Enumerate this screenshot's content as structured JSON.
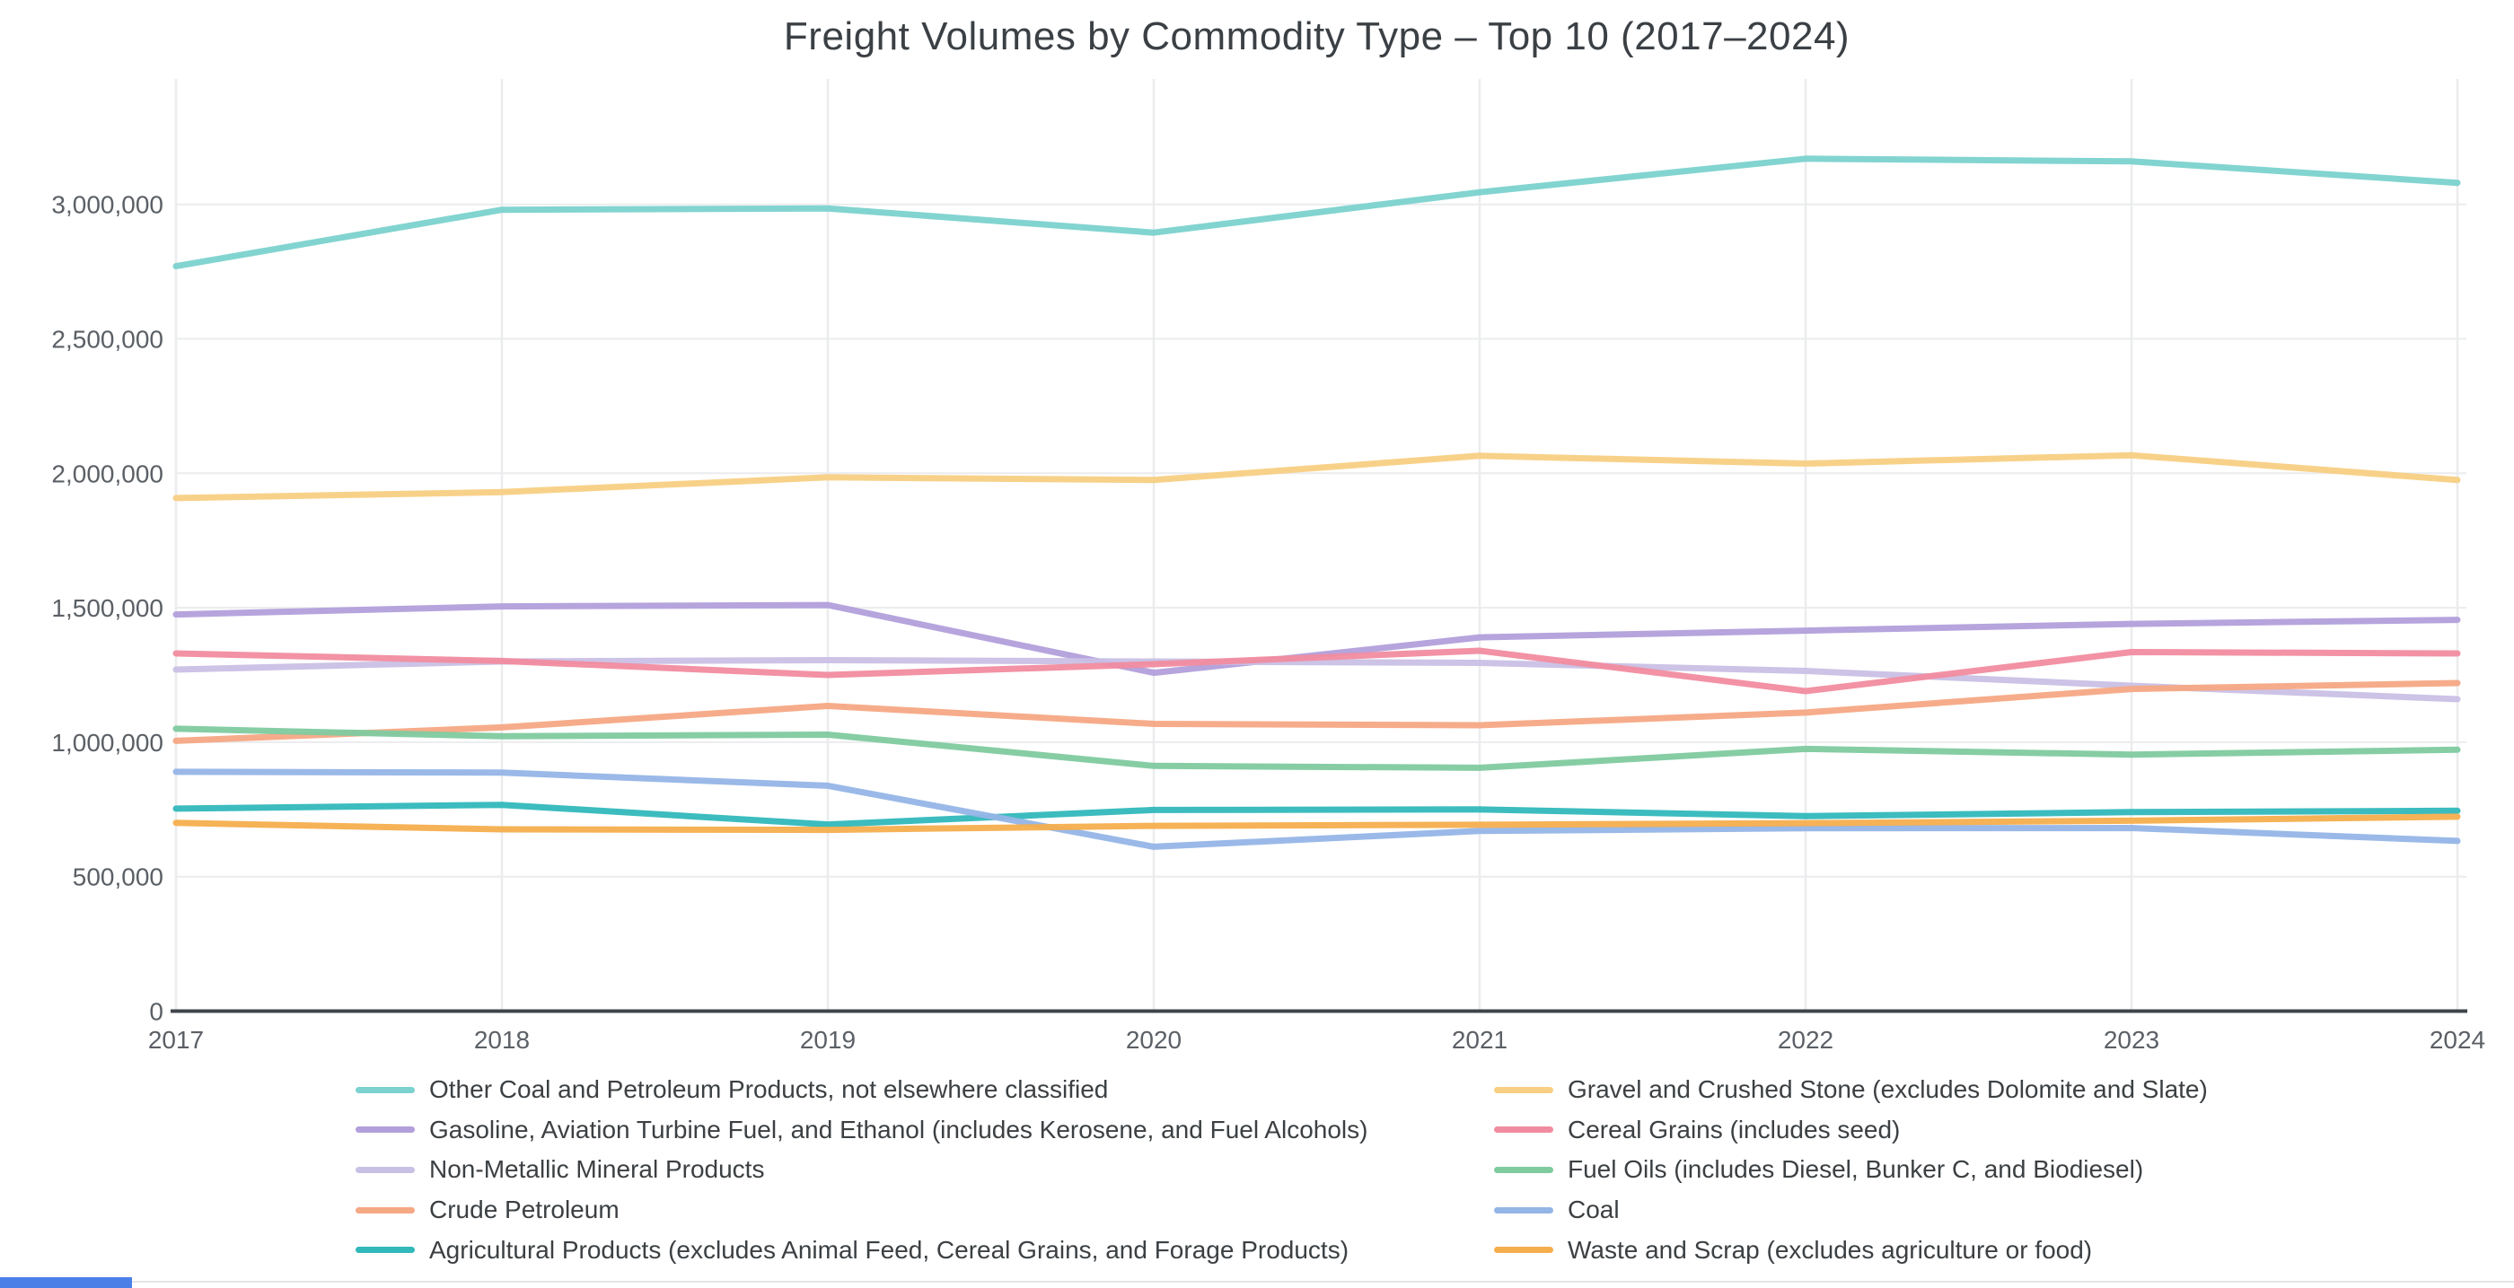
{
  "page": {
    "title": "Freight Volumes by Commodity Type – Top 10 (2017–2024)"
  },
  "chart_data": {
    "type": "line",
    "title": "Freight Volumes by Commodity Type – Top 10 (2017–2024)",
    "x": [
      2017,
      2018,
      2019,
      2020,
      2021,
      2022,
      2023,
      2024
    ],
    "xlabel": "",
    "ylabel": "",
    "ylim": [
      0,
      3450000
    ],
    "grid": true,
    "legend_position": "bottom",
    "y_ticks": [
      {
        "value": 0,
        "label": "0"
      },
      {
        "value": 500000,
        "label": "500,000"
      },
      {
        "value": 1000000,
        "label": "1,000,000"
      },
      {
        "value": 1500000,
        "label": "1,500,000"
      },
      {
        "value": 2000000,
        "label": "2,000,000"
      },
      {
        "value": 2500000,
        "label": "2,500,000"
      },
      {
        "value": 3000000,
        "label": "3,000,000"
      }
    ],
    "series": [
      {
        "key": "other-coal",
        "name": "Other Coal and Petroleum Products, not elsewhere classified",
        "color": "#7bd2ce",
        "values": [
          2770000,
          2980000,
          2985000,
          2895000,
          3045000,
          3170000,
          3160000,
          3080000
        ]
      },
      {
        "key": "gasoline",
        "name": "Gasoline, Aviation Turbine Fuel, and Ethanol (includes Kerosene, and Fuel Alcohols)",
        "color": "#b29fdb",
        "values": [
          1475000,
          1505000,
          1510000,
          1258000,
          1390000,
          1415000,
          1440000,
          1455000
        ]
      },
      {
        "key": "non-metallic",
        "name": "Non-Metallic Mineral Products",
        "color": "#c9c0e5",
        "values": [
          1270000,
          1300000,
          1305000,
          1300000,
          1295000,
          1265000,
          1210000,
          1160000
        ]
      },
      {
        "key": "crude-petroleum",
        "name": "Crude Petroleum",
        "color": "#f5a884",
        "values": [
          1005000,
          1055000,
          1135000,
          1068000,
          1063000,
          1110000,
          1198000,
          1220000
        ]
      },
      {
        "key": "agricultural",
        "name": "Agricultural Products (excludes Animal Feed, Cereal Grains, and Forage Products)",
        "color": "#32b8ba",
        "values": [
          753000,
          767000,
          694000,
          748000,
          750000,
          725000,
          740000,
          745000
        ]
      },
      {
        "key": "gravel",
        "name": "Gravel and Crushed Stone (excludes Dolomite and Slate)",
        "color": "#f8cf83",
        "values": [
          1908000,
          1930000,
          1985000,
          1975000,
          2065000,
          2036000,
          2067000,
          1975000
        ]
      },
      {
        "key": "cereal-grains",
        "name": "Cereal Grains (includes seed)",
        "color": "#f18c9f",
        "values": [
          1330000,
          1302000,
          1250000,
          1290000,
          1340000,
          1190000,
          1335000,
          1330000
        ]
      },
      {
        "key": "fuel-oils",
        "name": "Fuel Oils (includes Diesel, Bunker C, and Biodiesel)",
        "color": "#7fca9f",
        "values": [
          1050000,
          1022000,
          1028000,
          912000,
          905000,
          975000,
          954000,
          972000
        ]
      },
      {
        "key": "coal",
        "name": "Coal",
        "color": "#95b5e7",
        "values": [
          890000,
          887000,
          838000,
          611000,
          670000,
          680000,
          681000,
          633000
        ]
      },
      {
        "key": "waste-scrap",
        "name": "Waste and Scrap (excludes agriculture or food)",
        "color": "#f6ae4d",
        "values": [
          700000,
          676000,
          674000,
          689000,
          693000,
          699000,
          708000,
          723000
        ]
      }
    ],
    "legend_columns": [
      [
        "other-coal",
        "gasoline",
        "non-metallic",
        "crude-petroleum",
        "agricultural"
      ],
      [
        "gravel",
        "cereal-grains",
        "fuel-oils",
        "coal",
        "waste-scrap"
      ]
    ]
  },
  "style": {
    "grid_color": "#ebecee",
    "axis_line_color": "#3f454b",
    "tick_label_color": "#5b6066",
    "title_color": "#3b4045",
    "legend_text_color": "#3c4043"
  },
  "footer": {
    "accent_color": "#4b7fe8",
    "divider_color": "#e3e4e6"
  }
}
